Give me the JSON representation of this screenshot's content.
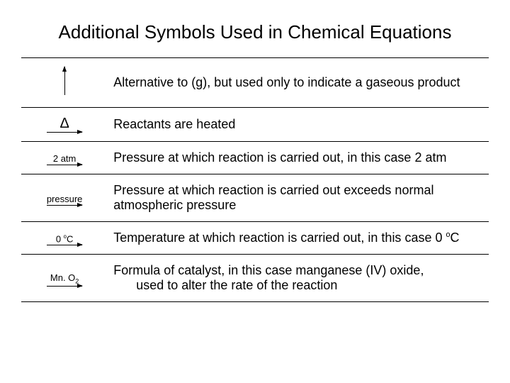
{
  "title": "Additional Symbols Used in Chemical Equations",
  "rows": {
    "r1": {
      "desc": "Alternative to (g), but used only to indicate a gaseous product"
    },
    "r2": {
      "symbol": "Δ",
      "desc": "Reactants are heated"
    },
    "r3": {
      "symbol": "2 atm",
      "desc": "Pressure at which reaction is carried out, in this case 2 atm"
    },
    "r4": {
      "symbol": "pressure",
      "desc": "Pressure at which reaction is carried out exceeds normal atmospheric pressure"
    },
    "r5": {
      "desc_part1": "Temperature at which reaction is carried out, in this case 0 ",
      "temp_value": "0 ",
      "temp_sup": "o",
      "temp_unit": "C"
    },
    "r6": {
      "formula_pre": "Mn. O",
      "formula_sub": "2",
      "desc_part1": "Formula of catalyst, in this case manganese (IV) oxide,",
      "desc_part2": "used to alter the rate of the reaction"
    }
  },
  "style": {
    "background": "#ffffff",
    "border_color": "#000000",
    "title_fontsize": 26,
    "body_fontsize": 18,
    "label_fontsize": 13
  }
}
